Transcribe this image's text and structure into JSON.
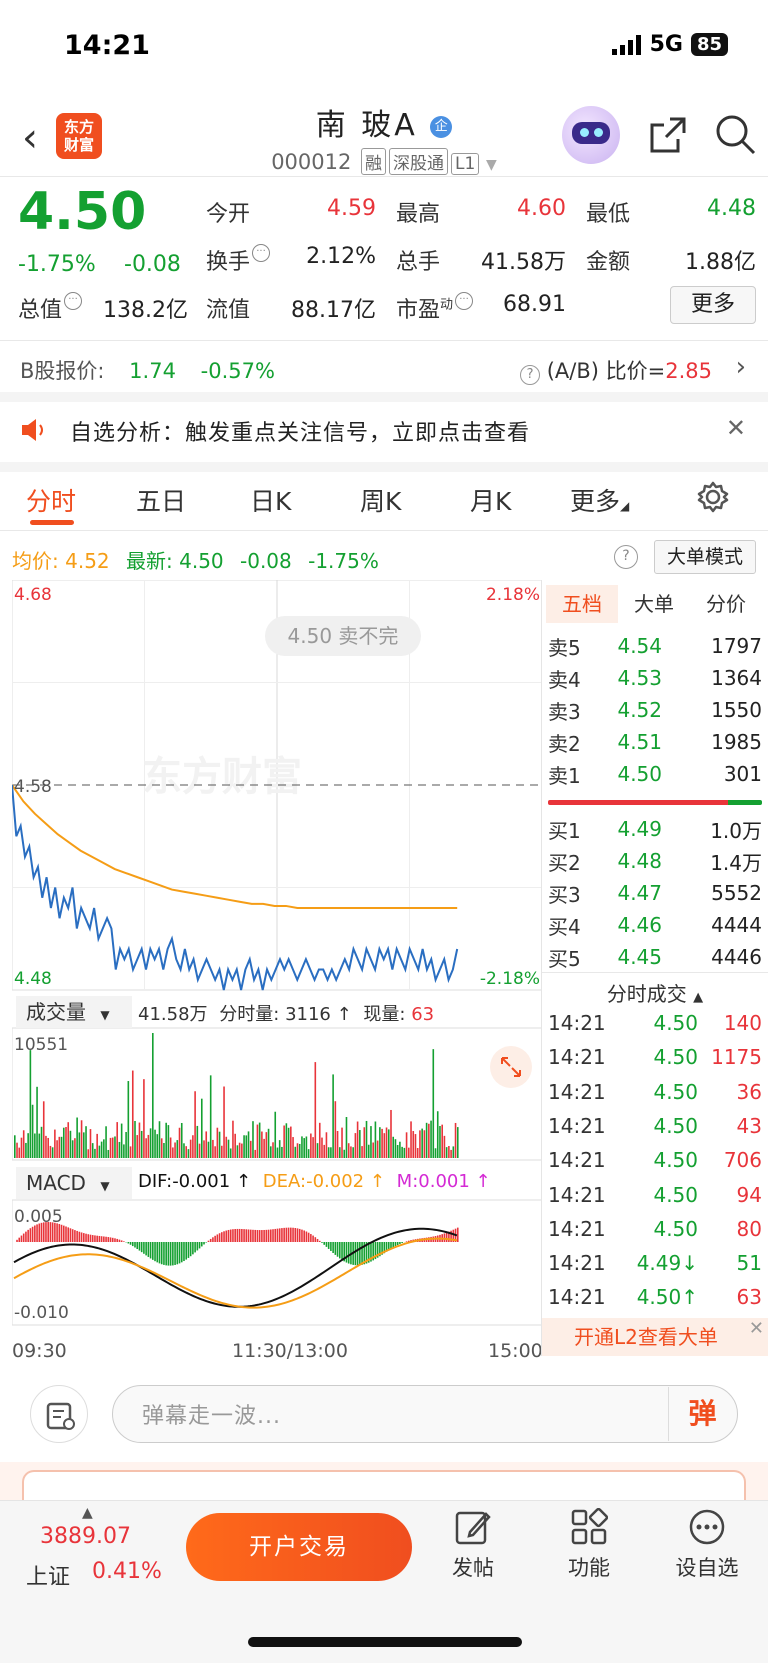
{
  "status": {
    "time": "14:21",
    "network": "5G",
    "battery": "85"
  },
  "header": {
    "logo_text": "东方财富",
    "name": "南 玻A",
    "badge": "企",
    "code": "000012",
    "tags": [
      "融",
      "深股通",
      "L1"
    ]
  },
  "quote": {
    "price": "4.50",
    "change_pct": "-1.75%",
    "change": "-0.08",
    "open_label": "今开",
    "open": "4.59",
    "high_label": "最高",
    "high": "4.60",
    "low_label": "最低",
    "low": "4.48",
    "turnover_label": "换手",
    "turnover": "2.12%",
    "volume_label": "总手",
    "volume": "41.58万",
    "amount_label": "金额",
    "amount": "1.88亿",
    "mktcap_label": "总值",
    "mktcap": "138.2亿",
    "float_label": "流值",
    "float": "88.17亿",
    "pe_label": "市盈",
    "pe_sup": "动",
    "pe": "68.91",
    "more_label": "更多"
  },
  "bshare": {
    "label": "B股报价:",
    "price": "1.74",
    "chg": "-0.57%",
    "ab_label": "(A/B) 比价=",
    "ab_value": "2.85"
  },
  "notice": {
    "text": "自选分析：触发重点关注信号，立即点击查看"
  },
  "tabs": [
    "分时",
    "五日",
    "日K",
    "周K",
    "月K",
    "更多"
  ],
  "line_info": {
    "avg_label": "均价:",
    "avg": "4.52",
    "last_label": "最新:",
    "last": "4.50",
    "chg": "-0.08",
    "pct": "-1.75%",
    "big_order_btn": "大单模式"
  },
  "chart_data": {
    "type": "line",
    "y_max": "4.68",
    "y_min": "4.48",
    "y_mid": "4.58",
    "pct_max": "2.18%",
    "pct_min": "-2.18%",
    "overlay_text": "4.50 卖不完",
    "watermark": "东方财富",
    "x_ticks": [
      "09:30",
      "11:30/13:00",
      "15:00"
    ],
    "ylim": [
      4.48,
      4.68
    ],
    "price": [
      4.58,
      4.555,
      4.56,
      4.545,
      4.55,
      4.535,
      4.54,
      4.525,
      4.535,
      4.52,
      4.53,
      4.515,
      4.525,
      4.52,
      4.53,
      4.51,
      4.52,
      4.515,
      4.51,
      4.52,
      4.505,
      4.51,
      4.515,
      4.51,
      4.49,
      4.5,
      4.495,
      4.5,
      4.49,
      4.495,
      4.5,
      4.49,
      4.5,
      4.495,
      4.5,
      4.49,
      4.5,
      4.505,
      4.495,
      4.49,
      4.5,
      4.49,
      4.495,
      4.485,
      4.49,
      4.495,
      4.49,
      4.485,
      4.49,
      4.48,
      4.49,
      4.485,
      4.49,
      4.48,
      4.49,
      4.495,
      4.485,
      4.49,
      4.48,
      4.49,
      4.485,
      4.49,
      4.495,
      4.49,
      4.495,
      4.49,
      4.485,
      4.49,
      4.495,
      4.49,
      4.485,
      4.49,
      4.49,
      4.485,
      4.49,
      4.485,
      4.49,
      4.495,
      4.49,
      4.5,
      4.495,
      4.49,
      4.5,
      4.495,
      4.49,
      4.5,
      4.495,
      4.5,
      4.49,
      4.5,
      4.495,
      4.49,
      4.5,
      4.495,
      4.49,
      4.5,
      4.49,
      4.495,
      4.485,
      4.49,
      4.495,
      4.485,
      4.49,
      4.5
    ],
    "avg": [
      4.58,
      4.572,
      4.566,
      4.561,
      4.556,
      4.552,
      4.548,
      4.545,
      4.542,
      4.539,
      4.537,
      4.535,
      4.533,
      4.531,
      4.529,
      4.528,
      4.527,
      4.526,
      4.525,
      4.524,
      4.523,
      4.522,
      4.522,
      4.521,
      4.521,
      4.52,
      4.52,
      4.52,
      4.52,
      4.52,
      4.52,
      4.52,
      4.52,
      4.52,
      4.52,
      4.52,
      4.52,
      4.52,
      4.52,
      4.52
    ],
    "volume_max": "10551",
    "volume_total": "41.58万",
    "minute_vol": "3116",
    "current_vol": "63",
    "macd_top": "0.005",
    "macd_bottom": "-0.010",
    "dif": "-0.001",
    "dea": "-0.002",
    "m": "0.001"
  },
  "vol_header": {
    "sel": "成交量",
    "total": "41.58万",
    "minute_label": "分时量:",
    "minute": "3116",
    "cur_label": "现量:",
    "cur": "63"
  },
  "macd_header": {
    "sel": "MACD",
    "dif": "DIF:-0.001",
    "dea": "DEA:-0.002",
    "m": "M:0.001"
  },
  "orderbook": {
    "tabs": [
      "五档",
      "大单",
      "分价"
    ],
    "asks": [
      {
        "label": "卖5",
        "price": "4.54",
        "vol": "1797"
      },
      {
        "label": "卖4",
        "price": "4.53",
        "vol": "1364"
      },
      {
        "label": "卖3",
        "price": "4.52",
        "vol": "1550"
      },
      {
        "label": "卖2",
        "price": "4.51",
        "vol": "1985"
      },
      {
        "label": "卖1",
        "price": "4.50",
        "vol": "301"
      }
    ],
    "bids": [
      {
        "label": "买1",
        "price": "4.49",
        "vol": "1.0万"
      },
      {
        "label": "买2",
        "price": "4.48",
        "vol": "1.4万"
      },
      {
        "label": "买3",
        "price": "4.47",
        "vol": "5552"
      },
      {
        "label": "买4",
        "price": "4.46",
        "vol": "4444"
      },
      {
        "label": "买5",
        "price": "4.45",
        "vol": "4446"
      }
    ]
  },
  "ticks": {
    "title": "分时成交",
    "rows": [
      {
        "time": "14:21",
        "price": "4.50",
        "vol": "140"
      },
      {
        "time": "14:21",
        "price": "4.50",
        "vol": "1175"
      },
      {
        "time": "14:21",
        "price": "4.50",
        "vol": "36"
      },
      {
        "time": "14:21",
        "price": "4.50",
        "vol": "43"
      },
      {
        "time": "14:21",
        "price": "4.50",
        "vol": "706"
      },
      {
        "time": "14:21",
        "price": "4.50",
        "vol": "94"
      },
      {
        "time": "14:21",
        "price": "4.50",
        "vol": "80"
      },
      {
        "time": "14:21",
        "price": "4.49↓",
        "vol": "51"
      },
      {
        "time": "14:21",
        "price": "4.50↑",
        "vol": "63"
      }
    ],
    "l2_text": "开通L2查看大单"
  },
  "danmu": {
    "placeholder": "弹幕走一波...",
    "send": "弹"
  },
  "bottom": {
    "index_value": "3889.07",
    "index_name": "上证",
    "index_chg": "0.41%",
    "open_btn": "开户交易",
    "nav": [
      "发帖",
      "功能",
      "设自选"
    ]
  }
}
